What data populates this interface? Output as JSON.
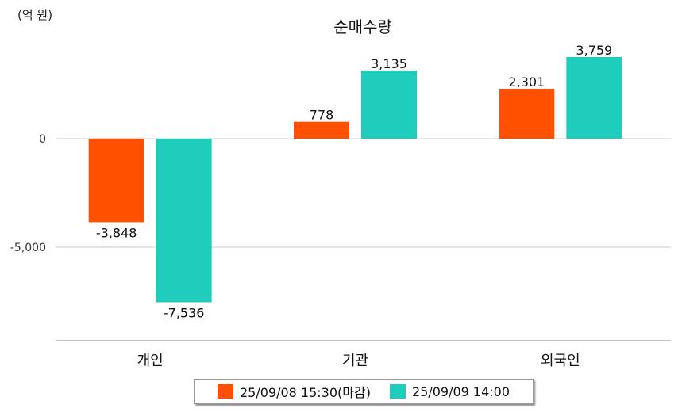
{
  "unit_label": "(억 원)",
  "chart_data": {
    "type": "bar",
    "title": "순매수량",
    "categories": [
      "개인",
      "기관",
      "외국인"
    ],
    "series": [
      {
        "name": "25/09/08 15:30(마감)",
        "color": "#ff5000",
        "values": [
          -3848,
          778,
          2301
        ]
      },
      {
        "name": "25/09/09 14:00",
        "color": "#1ecdbc",
        "values": [
          -7536,
          3135,
          3759
        ]
      }
    ],
    "y_ticks": [
      0,
      -5000
    ],
    "y_tick_labels": [
      "0",
      "-5,000"
    ],
    "value_labels": [
      [
        "-3,848",
        "778",
        "2,301"
      ],
      [
        "-7,536",
        "3,135",
        "3,759"
      ]
    ],
    "ylim": [
      -9300,
      4700
    ],
    "grid": true,
    "legend_position": "bottom"
  }
}
